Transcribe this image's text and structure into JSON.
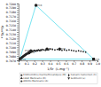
{
  "chart_data": {
    "type": "scatter",
    "xlabel": "1/Sr  (L.mg⁻¹)",
    "ylabel": "⁸⁷Sr/⁸⁶Sr",
    "xlim": [
      0,
      1.0
    ],
    "ylim": [
      0.707,
      0.72
    ],
    "xticks": [
      0,
      0.1,
      0.2,
      0.3,
      0.4,
      0.5,
      0.6,
      0.7,
      0.8,
      0.9,
      {
        "value": 1.0,
        "label": "1.0"
      }
    ],
    "yticks": [
      {
        "value": 0.707,
        "label": "0.7070"
      },
      {
        "value": 0.7075,
        "label": null
      },
      {
        "value": 0.708,
        "label": "0.7080"
      },
      {
        "value": 0.7085,
        "label": null
      },
      {
        "value": 0.709,
        "label": "0.7090"
      },
      {
        "value": 0.7095,
        "label": null
      },
      {
        "value": 0.71,
        "label": "0.7100"
      },
      {
        "value": 0.7105,
        "label": null
      },
      {
        "value": 0.711,
        "label": "0.7110"
      },
      {
        "value": 0.7115,
        "label": null
      },
      {
        "value": 0.712,
        "label": "0.7120"
      },
      {
        "value": 0.7125,
        "label": null
      },
      {
        "value": 0.713,
        "label": "0.7130"
      },
      {
        "value": 0.7135,
        "label": null
      },
      {
        "value": 0.714,
        "label": "0.7140"
      },
      {
        "value": 0.7145,
        "label": null
      },
      {
        "value": 0.715,
        "label": "0.7150"
      },
      {
        "value": 0.7155,
        "label": null
      },
      {
        "value": 0.716,
        "label": "0.7160"
      },
      {
        "value": 0.7165,
        "label": null
      },
      {
        "value": 0.717,
        "label": "0.7170"
      },
      {
        "value": 0.7175,
        "label": null
      },
      {
        "value": 0.718,
        "label": "0.7180"
      },
      {
        "value": 0.7185,
        "label": null
      },
      {
        "value": 0.719,
        "label": "0.7190"
      },
      {
        "value": 0.7195,
        "label": null
      },
      {
        "value": 0.72,
        "label": "0.7200"
      }
    ],
    "grid": false,
    "series": [
      {
        "type": "line",
        "color": "#55ddee",
        "x": [
          0.015,
          0.22,
          0.95,
          0.015
        ],
        "values": [
          0.7073,
          0.7196,
          0.7073,
          0.7073
        ]
      },
      {
        "type": "scatter",
        "color": "#222222",
        "marker": "circle",
        "x": [
          0.03,
          0.035,
          0.038,
          0.04,
          0.042,
          0.045,
          0.048,
          0.05,
          0.052,
          0.055,
          0.058,
          0.06,
          0.062,
          0.065,
          0.068,
          0.07,
          0.072,
          0.075,
          0.078,
          0.08,
          0.082,
          0.085,
          0.088,
          0.09,
          0.092,
          0.095,
          0.098,
          0.1,
          0.105,
          0.11,
          0.115,
          0.12,
          0.125,
          0.13,
          0.135,
          0.14,
          0.145,
          0.15,
          0.155,
          0.16,
          0.165,
          0.17,
          0.18,
          0.19,
          0.2,
          0.21,
          0.22,
          0.23,
          0.24,
          0.25,
          0.26,
          0.27,
          0.28,
          0.29,
          0.3,
          0.32,
          0.34,
          0.36,
          0.38,
          0.4,
          0.43,
          0.46,
          0.49,
          0.52,
          0.55,
          0.58,
          0.61,
          0.64,
          0.67,
          0.7,
          0.73,
          0.76,
          0.79,
          0.82,
          0.85
        ],
        "values": [
          0.7076,
          0.7077,
          0.7075,
          0.7078,
          0.7076,
          0.7077,
          0.7079,
          0.7078,
          0.7077,
          0.708,
          0.7079,
          0.7078,
          0.7081,
          0.708,
          0.7079,
          0.7082,
          0.7081,
          0.708,
          0.7083,
          0.7082,
          0.7081,
          0.7084,
          0.7083,
          0.7082,
          0.7085,
          0.7084,
          0.7083,
          0.7086,
          0.7085,
          0.7084,
          0.7087,
          0.7086,
          0.7085,
          0.7088,
          0.7087,
          0.7086,
          0.7089,
          0.7088,
          0.709,
          0.7089,
          0.7091,
          0.709,
          0.7092,
          0.7091,
          0.7093,
          0.7092,
          0.7091,
          0.7093,
          0.7092,
          0.7094,
          0.7093,
          0.7092,
          0.7094,
          0.7093,
          0.7095,
          0.7094,
          0.7093,
          0.7095,
          0.7094,
          0.7096,
          0.7095,
          0.7094,
          0.7095,
          0.7094,
          0.7093,
          0.7094,
          0.7093,
          0.7094,
          0.7093,
          0.7092,
          0.7091,
          0.7092,
          0.7091,
          0.709,
          0.7089
        ]
      },
      {
        "type": "scatter",
        "color": "#222222",
        "marker": "triangle",
        "x": [
          0.015
        ],
        "values": [
          0.7073
        ],
        "labels": [
          "Pn1"
        ]
      },
      {
        "type": "scatter",
        "color": "#222222",
        "marker": "circle",
        "x": [
          0.22
        ],
        "values": [
          0.7196
        ],
        "labels": [
          "Pn3"
        ]
      },
      {
        "type": "scatter",
        "color": "#222222",
        "marker": "square",
        "x": [
          0.95
        ],
        "values": [
          0.7073
        ],
        "labels": [
          "Pn5"
        ]
      },
      {
        "type": "scatter",
        "color": "#222222",
        "marker": "circle",
        "x": [
          0.13,
          0.155,
          0.36,
          0.52
        ],
        "values": [
          0.7088,
          0.7092,
          0.7096,
          0.7096
        ],
        "labels": [
          "Pn2",
          "Pn3",
          "Pn4",
          "Pn5"
        ]
      }
    ],
    "legend": "lower right",
    "legend_entries": [
      {
        "marker": "square",
        "color": "#333333",
        "label": "Endmembres marins/Oceaniques (M)"
      },
      {
        "marker": "triangle",
        "color": "#333333",
        "label": "LSGE Marocaine (B)"
      },
      {
        "marker": "circle",
        "color": "#333333",
        "label": "Albitite Marocaine (A)"
      },
      {
        "marker": "diamond",
        "color": "#333333",
        "label": "Calcaire Cameroun (C)"
      },
      {
        "marker": "triangle-down",
        "color": "#333333",
        "label": "Sediment (s)"
      }
    ]
  }
}
